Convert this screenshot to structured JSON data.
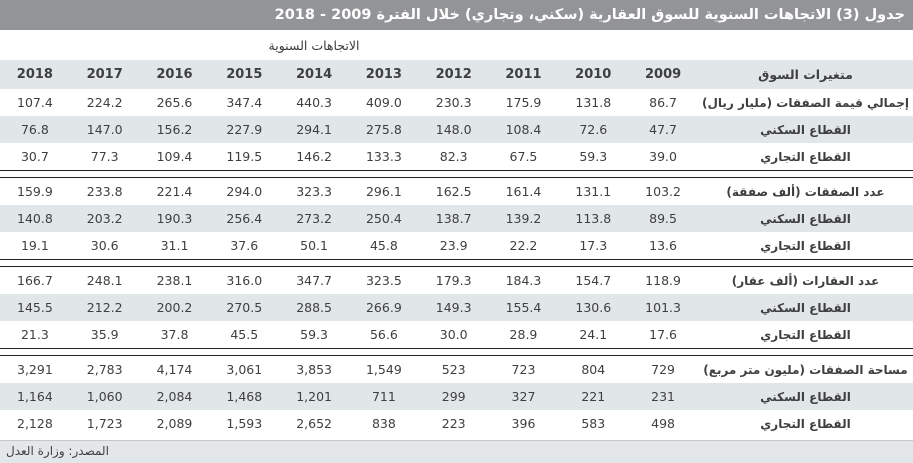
{
  "title": "جدول (3) الاتجاهات السنوية للسوق العقارية (سكني، وتجاري) خلال الفترة 2009 - 2018",
  "table": {
    "subtitle": "الاتجاهات السنوية",
    "header": {
      "years": [
        "2018",
        "2017",
        "2016",
        "2015",
        "2014",
        "2013",
        "2012",
        "2011",
        "2010",
        "2009"
      ],
      "variables_label": "متغيرات السوق"
    },
    "sections": [
      {
        "rows": [
          {
            "label": "إجمالي قيمة الصفقات (مليار ريال)",
            "values": [
              "107.4",
              "224.2",
              "265.6",
              "347.4",
              "440.3",
              "409.0",
              "230.3",
              "175.9",
              "131.8",
              "86.7"
            ]
          },
          {
            "label": "القطاع السكني",
            "values": [
              "76.8",
              "147.0",
              "156.2",
              "227.9",
              "294.1",
              "275.8",
              "148.0",
              "108.4",
              "72.6",
              "47.7"
            ]
          },
          {
            "label": "القطاع التجاري",
            "values": [
              "30.7",
              "77.3",
              "109.4",
              "119.5",
              "146.2",
              "133.3",
              "82.3",
              "67.5",
              "59.3",
              "39.0"
            ]
          }
        ]
      },
      {
        "rows": [
          {
            "label": "عدد الصفقات (ألف صفقة)",
            "values": [
              "159.9",
              "233.8",
              "221.4",
              "294.0",
              "323.3",
              "296.1",
              "162.5",
              "161.4",
              "131.1",
              "103.2"
            ]
          },
          {
            "label": "القطاع السكني",
            "values": [
              "140.8",
              "203.2",
              "190.3",
              "256.4",
              "273.2",
              "250.4",
              "138.7",
              "139.2",
              "113.8",
              "89.5"
            ]
          },
          {
            "label": "القطاع التجاري",
            "values": [
              "19.1",
              "30.6",
              "31.1",
              "37.6",
              "50.1",
              "45.8",
              "23.9",
              "22.2",
              "17.3",
              "13.6"
            ]
          }
        ]
      },
      {
        "rows": [
          {
            "label": "عدد العقارات (ألف عقار)",
            "values": [
              "166.7",
              "248.1",
              "238.1",
              "316.0",
              "347.7",
              "323.5",
              "179.3",
              "184.3",
              "154.7",
              "118.9"
            ]
          },
          {
            "label": "القطاع السكني",
            "values": [
              "145.5",
              "212.2",
              "200.2",
              "270.5",
              "288.5",
              "266.9",
              "149.3",
              "155.4",
              "130.6",
              "101.3"
            ]
          },
          {
            "label": "القطاع التجاري",
            "values": [
              "21.3",
              "35.9",
              "37.8",
              "45.5",
              "59.3",
              "56.6",
              "30.0",
              "28.9",
              "24.1",
              "17.6"
            ]
          }
        ]
      },
      {
        "rows": [
          {
            "label": "مساحة الصفقات (مليون متر مربع)",
            "values": [
              "3,291",
              "2,783",
              "4,174",
              "3,061",
              "3,853",
              "1,549",
              "523",
              "723",
              "804",
              "729"
            ]
          },
          {
            "label": "القطاع السكني",
            "values": [
              "1,164",
              "1,060",
              "2,084",
              "1,468",
              "1,201",
              "711",
              "299",
              "327",
              "221",
              "231"
            ]
          },
          {
            "label": "القطاع التجاري",
            "values": [
              "2,128",
              "1,723",
              "2,089",
              "1,593",
              "2,652",
              "838",
              "223",
              "396",
              "583",
              "498"
            ]
          }
        ]
      }
    ]
  },
  "footer": {
    "source": "المصدر: وزارة العدل"
  },
  "colors": {
    "title_bar": "#929497",
    "shaded_row": "#e1e6e9",
    "footer_bar": "#e3e7e9",
    "text": "#3e3f41",
    "divider": "#232323",
    "title_text": "#ffffff"
  }
}
